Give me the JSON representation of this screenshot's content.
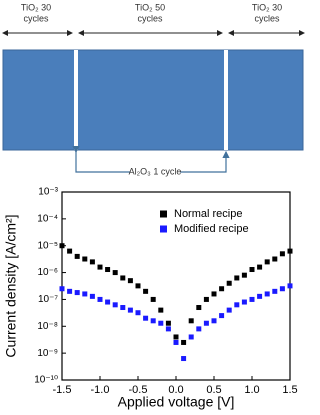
{
  "diagram": {
    "layers": [
      {
        "label": [
          "TiO₂ 30",
          "cycles"
        ]
      },
      {
        "label": [
          "TiO₂ 50",
          "cycles"
        ]
      },
      {
        "label": [
          "TiO₂ 30",
          "cycles"
        ]
      }
    ],
    "interlayer": "Al₂O₃ 1 cycle"
  },
  "chart_data": {
    "type": "scatter",
    "xlabel": "Applied voltage [V]",
    "ylabel": "Current density [A/cm²]",
    "x": [
      -1.5,
      -1.4,
      -1.3,
      -1.2,
      -1.1,
      -1.0,
      -0.9,
      -0.8,
      -0.7,
      -0.6,
      -0.5,
      -0.4,
      -0.3,
      -0.2,
      -0.1,
      0.0,
      0.1,
      0.2,
      0.3,
      0.4,
      0.5,
      0.6,
      0.7,
      0.8,
      0.9,
      1.0,
      1.1,
      1.2,
      1.3,
      1.4,
      1.5
    ],
    "series": [
      {
        "name": "Normal recipe",
        "color": "#000000",
        "values": [
          1e-05,
          6.3e-06,
          4e-06,
          3.2e-06,
          2.5e-06,
          1.6e-06,
          1.3e-06,
          1e-06,
          6.3e-07,
          5e-07,
          3.2e-07,
          2e-07,
          1e-07,
          4e-08,
          1.3e-08,
          4e-09,
          2.5e-09,
          1.6e-08,
          5e-08,
          1e-07,
          1.6e-07,
          2.5e-07,
          4e-07,
          6.3e-07,
          8e-07,
          1.3e-06,
          1.6e-06,
          2.5e-06,
          3.2e-06,
          5e-06,
          6.3e-06
        ]
      },
      {
        "name": "Modified recipe",
        "color": "#1a1aff",
        "values": [
          2.5e-07,
          2e-07,
          1.8e-07,
          1.6e-07,
          1.3e-07,
          1e-07,
          8e-08,
          6.3e-08,
          5e-08,
          4e-08,
          3.2e-08,
          2e-08,
          1.6e-08,
          1.3e-08,
          8e-09,
          2.5e-09,
          6.3e-10,
          4e-09,
          8e-09,
          1.3e-08,
          1.6e-08,
          2.5e-08,
          4e-08,
          6.3e-08,
          8e-08,
          1e-07,
          1.3e-07,
          1.6e-07,
          2e-07,
          2.5e-07,
          3.2e-07
        ]
      }
    ],
    "xlim": [
      -1.5,
      1.5
    ],
    "xticks": [
      -1.5,
      {
        "value": -1.0,
        "label": "-1.0"
      },
      -0.5,
      {
        "value": 0.0,
        "label": "0.0"
      },
      0.5,
      {
        "value": 1.0,
        "label": "1.0"
      },
      1.5
    ],
    "ylim": [
      1e-10,
      0.001
    ],
    "log_y": true,
    "yticks": [
      {
        "value": 1e-10,
        "label": "10⁻¹⁰"
      },
      {
        "value": 1e-09,
        "label": "10⁻⁹"
      },
      {
        "value": 1e-08,
        "label": "10⁻⁸"
      },
      {
        "value": 1e-07,
        "label": "10⁻⁷"
      },
      {
        "value": 1e-06,
        "label": "10⁻⁶"
      },
      {
        "value": 1e-05,
        "label": "10⁻⁵"
      },
      {
        "value": 0.0001,
        "label": "10⁻⁴"
      },
      {
        "value": 0.001,
        "label": "10⁻³"
      }
    ],
    "legend": "upper right"
  }
}
